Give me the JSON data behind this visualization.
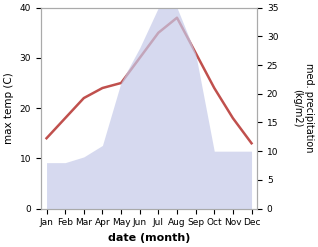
{
  "months": [
    "Jan",
    "Feb",
    "Mar",
    "Apr",
    "May",
    "Jun",
    "Jul",
    "Aug",
    "Sep",
    "Oct",
    "Nov",
    "Dec"
  ],
  "temperature": [
    14,
    18,
    22,
    24,
    25,
    30,
    35,
    38,
    31,
    24,
    18,
    13
  ],
  "precipitation_right": [
    8,
    8,
    9,
    11,
    22,
    28,
    35,
    35,
    27,
    10,
    10,
    10
  ],
  "temp_color": "#c0504d",
  "precip_color_fill": "#c5cae9",
  "background": "#ffffff",
  "xlabel": "date (month)",
  "ylabel_left": "max temp (C)",
  "ylabel_right": "med. precipitation\n(kg/m2)",
  "ylim_left": [
    0,
    40
  ],
  "ylim_right": [
    0,
    35
  ],
  "yticks_left": [
    0,
    10,
    20,
    30,
    40
  ],
  "yticks_right": [
    0,
    5,
    10,
    15,
    20,
    25,
    30,
    35
  ]
}
